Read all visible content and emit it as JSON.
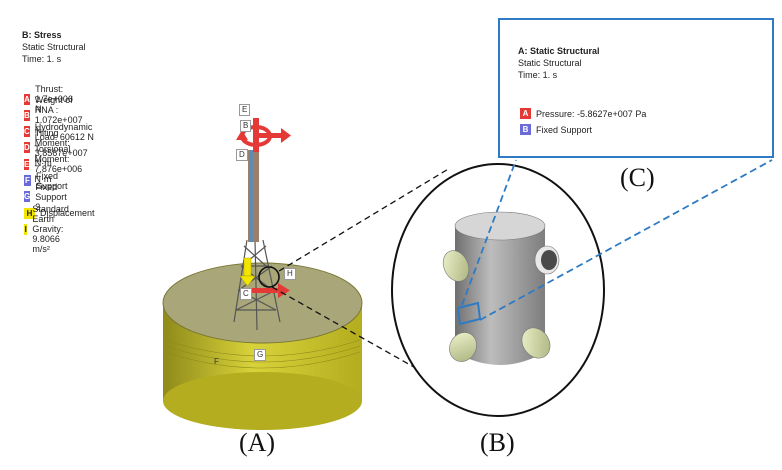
{
  "main_header": {
    "title": "B: Stress",
    "type": "Static Structural",
    "time": "Time: 1. s"
  },
  "loads": [
    {
      "letter": "A",
      "label": "Thrust: 1.7e+006 N",
      "color": "#e53935"
    },
    {
      "letter": "B",
      "label": "Weight of RNA : 1.072e+007 N",
      "color": "#e53935"
    },
    {
      "letter": "C",
      "label": "Hydrodynamic Load: 60612 N",
      "color": "#e53935"
    },
    {
      "letter": "D",
      "label": "Tilting Moment: 3.8567e+007 N·m",
      "color": "#e53935"
    },
    {
      "letter": "E",
      "label": "Torsional Moment: 7.876e+006 N·m",
      "color": "#e53935"
    },
    {
      "letter": "F",
      "label": "Fixed Support",
      "color": "#6b6bd8"
    },
    {
      "letter": "G",
      "label": "Fixed Support 2",
      "color": "#6b6bd8"
    },
    {
      "letter": "H",
      "label": "Displacement",
      "color": "#f2e600"
    },
    {
      "letter": "I",
      "label": "Standard Earth Gravity: 9.8066 m/s²",
      "color": "#f2e600"
    }
  ],
  "callout": {
    "title": "A: Static Structural",
    "type": "Static Structural",
    "time": "Time: 1. s",
    "items": [
      {
        "letter": "A",
        "label": "Pressure: -5.8627e+007 Pa",
        "color": "#e53935"
      },
      {
        "letter": "B",
        "label": "Fixed Support",
        "color": "#6b6bd8"
      }
    ]
  },
  "model_tags": {
    "e": "E",
    "b": "B",
    "d": "D",
    "c": "C",
    "h": "H",
    "f": "F",
    "g": "G"
  },
  "captions": {
    "a": "(A)",
    "b": "(B)",
    "c": "(C)"
  },
  "colors": {
    "accent_blue": "#2e7bc4",
    "load_red": "#e53935",
    "support_blue": "#6b6bd8",
    "yellow": "#f2e600",
    "base_olive": "#c9c31c",
    "tube_gray": "#9a9a9a"
  }
}
